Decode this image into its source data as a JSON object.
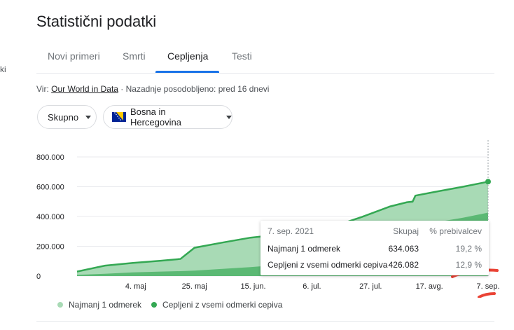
{
  "side_fragment": "ki",
  "page_title": "Statistični podatki",
  "tabs": [
    {
      "label": "Novi primeri"
    },
    {
      "label": "Smrti"
    },
    {
      "label": "Cepljenja"
    },
    {
      "label": "Testi"
    }
  ],
  "source": {
    "prefix": "Vir:",
    "link": "Our World in Data",
    "suffix": "· Nazadnje posodobljeno: pred 16 dnevi"
  },
  "filters": {
    "scope": "Skupno",
    "region": "Bosna in Hercegovina"
  },
  "colors": {
    "accent": "#1a73e8",
    "series_light": "#a8dab5",
    "series_dark": "#5bb974",
    "line": "#34a853",
    "annotation": "#ea4335"
  },
  "chart_data": {
    "type": "area",
    "x_ticks": [
      "4. maj",
      "25. maj",
      "15. jun.",
      "6. jul.",
      "27. jul.",
      "17. avg.",
      "7. sep."
    ],
    "y_ticks": [
      "800.000",
      "600.000",
      "400.000",
      "200.000",
      "0"
    ],
    "ylim": [
      0,
      800000
    ],
    "x_dates": [
      "2021-04-13",
      "2021-04-23",
      "2021-05-03",
      "2021-05-13",
      "2021-05-20",
      "2021-05-25",
      "2021-06-04",
      "2021-06-14",
      "2021-06-24",
      "2021-07-04",
      "2021-07-14",
      "2021-07-24",
      "2021-08-03",
      "2021-08-09",
      "2021-08-11",
      "2021-08-12",
      "2021-08-19",
      "2021-08-29",
      "2021-09-07"
    ],
    "series": [
      {
        "name": "Najmanj 1 odmerek",
        "values": [
          30000,
          70000,
          88000,
          103000,
          115000,
          190000,
          225000,
          258000,
          278000,
          303000,
          335000,
          398000,
          468000,
          496000,
          500000,
          540000,
          565000,
          600000,
          634063
        ]
      },
      {
        "name": "Cepljeni z vsemi odmerki cepiva",
        "values": [
          8000,
          15000,
          25000,
          30000,
          33000,
          36000,
          48000,
          60000,
          75000,
          108000,
          160000,
          230000,
          290000,
          310000,
          318000,
          330000,
          360000,
          392000,
          426082
        ]
      }
    ],
    "grid": true,
    "legend_position": "bottom-left",
    "tooltip": {
      "date": "7. sep. 2021",
      "col_total": "Skupaj",
      "col_percent": "% prebivalcev",
      "rows": [
        {
          "label": "Najmanj 1 odmerek",
          "total": "634.063",
          "percent": "19,2 %"
        },
        {
          "label": "Cepljeni z vsemi odmerki cepiva",
          "total": "426.082",
          "percent": "12,9 %"
        }
      ]
    }
  }
}
